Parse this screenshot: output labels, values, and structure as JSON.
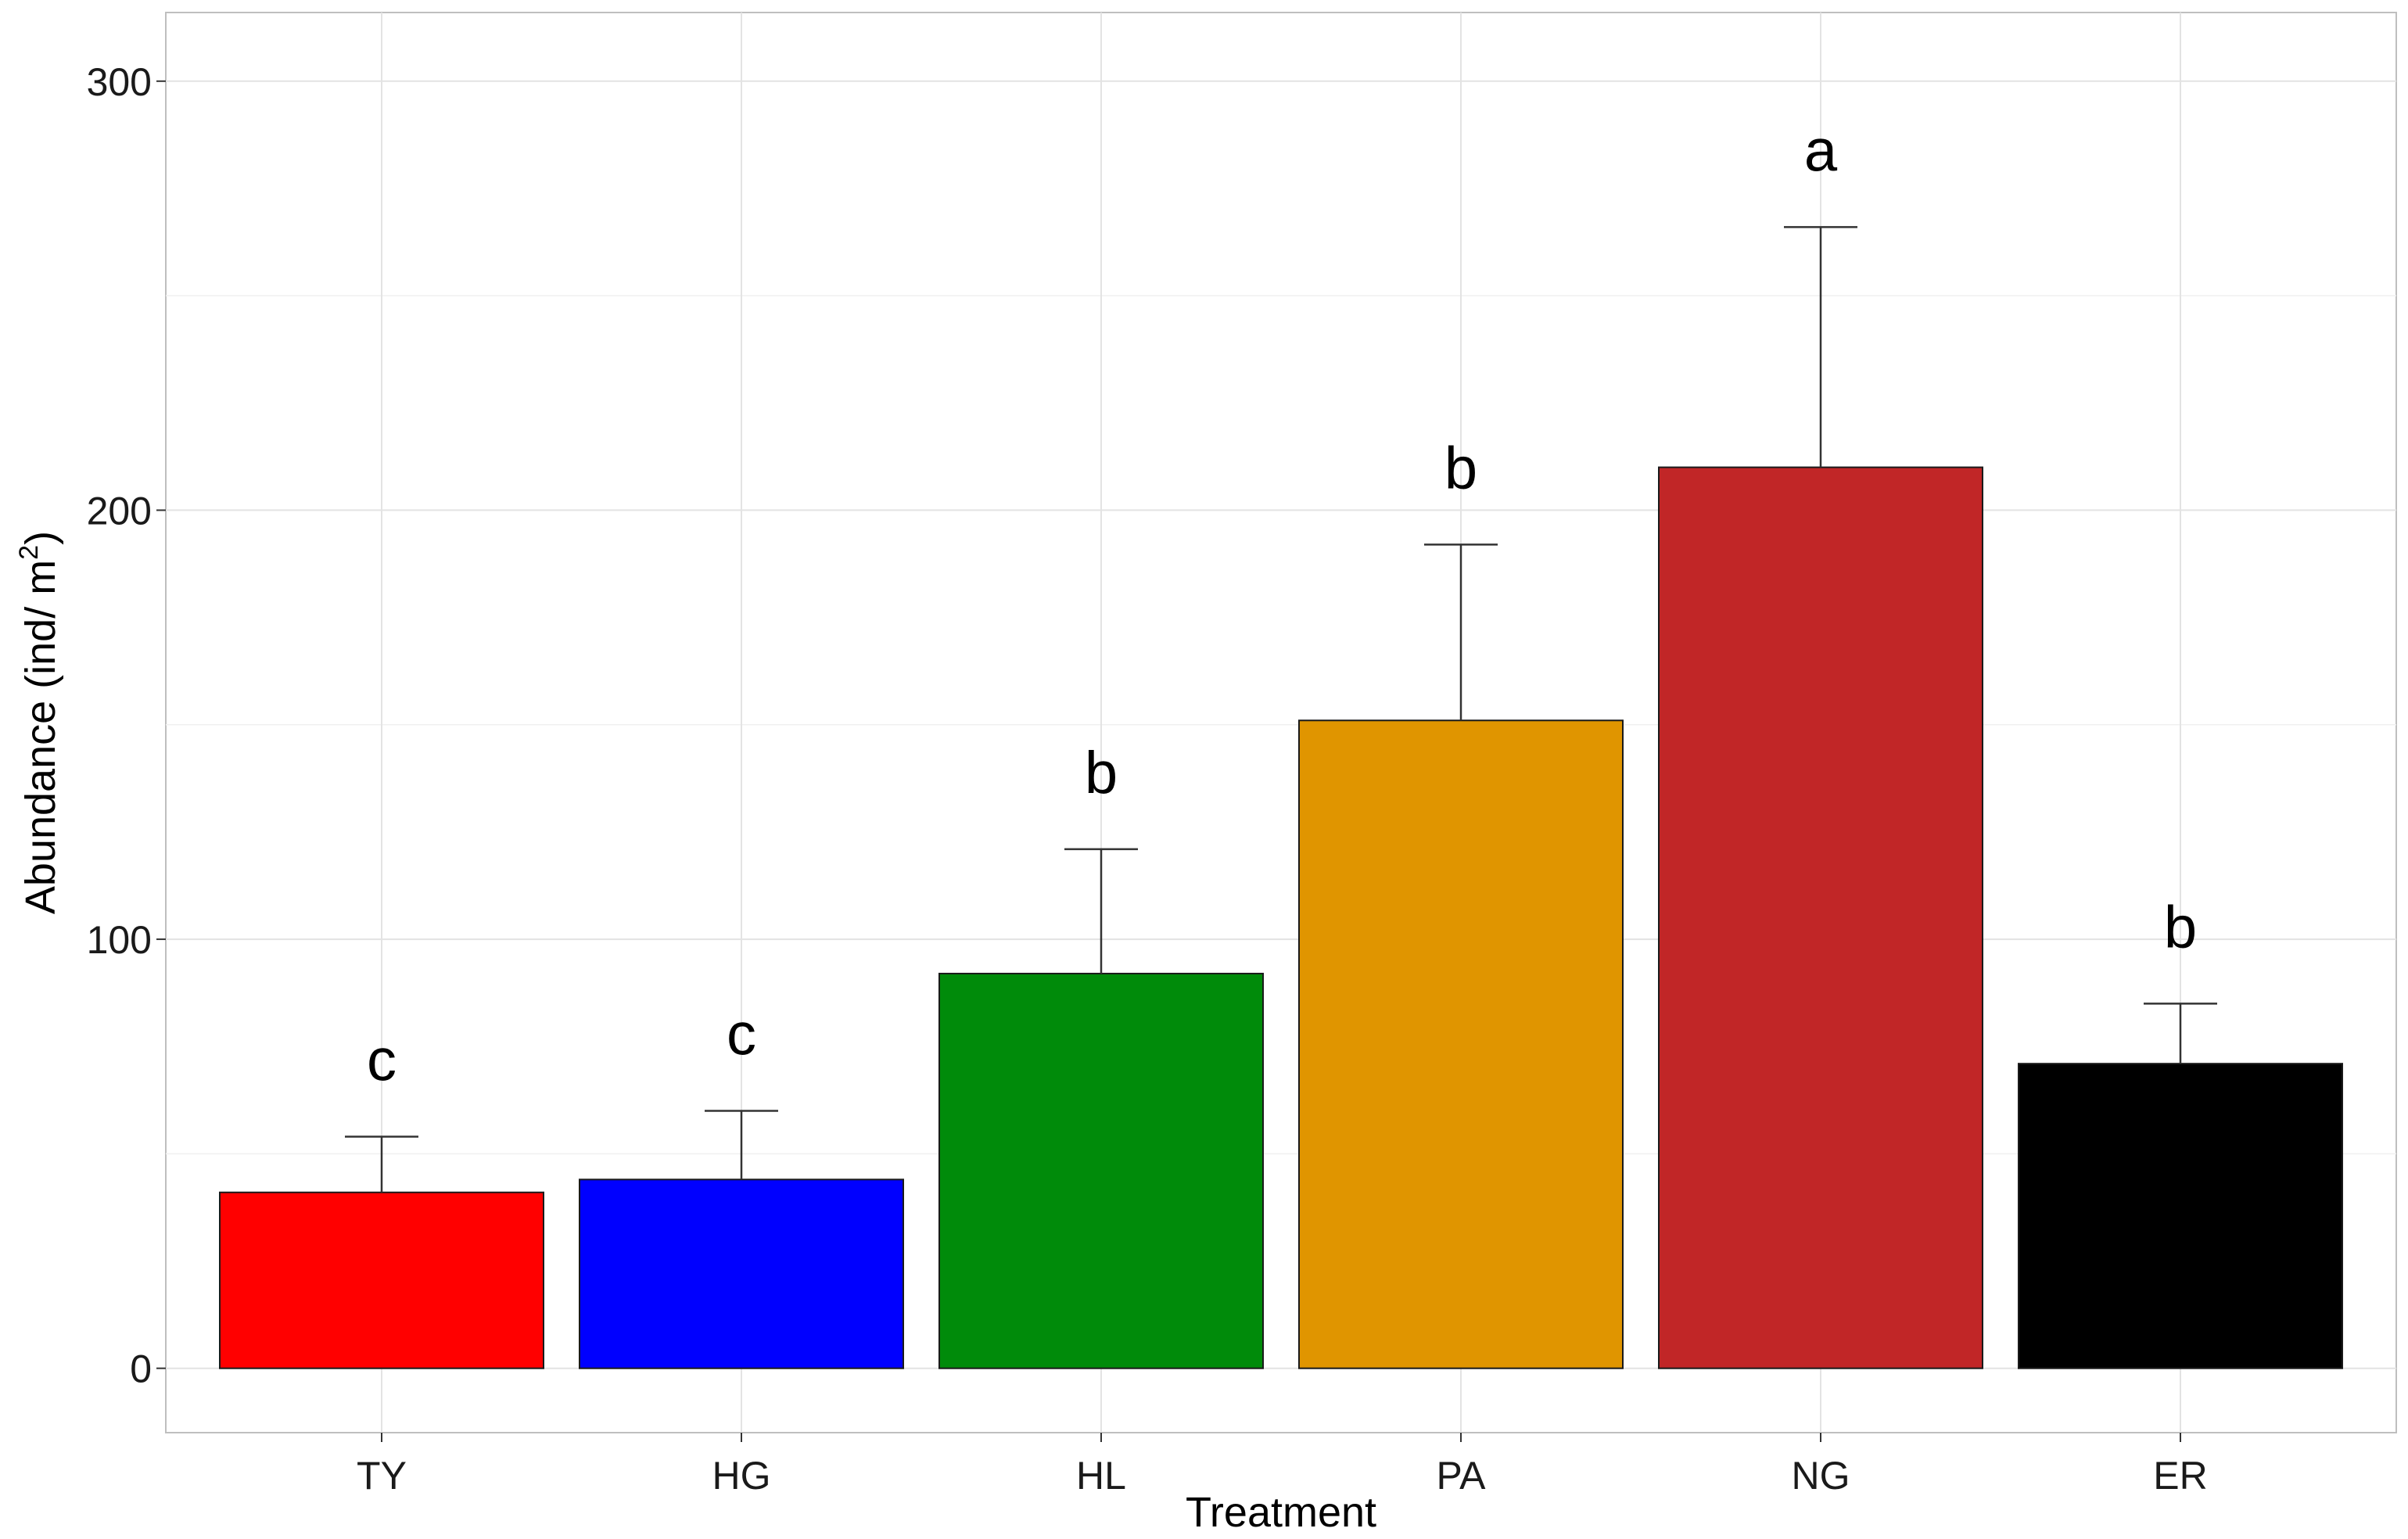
{
  "chart_data": {
    "type": "bar",
    "title": "",
    "xlabel": "Treatment",
    "ylabel": "Abundance (ind/ m",
    "ylabel_superscript": "2",
    "ylabel_close": ")",
    "categories": [
      "TY",
      "HG",
      "HL",
      "PA",
      "NG",
      "ER"
    ],
    "values": [
      41,
      44,
      92,
      151,
      210,
      71
    ],
    "error_upper": [
      54,
      60,
      121,
      192,
      266,
      85
    ],
    "significance": [
      "c",
      "c",
      "b",
      "b",
      "a",
      "b"
    ],
    "colors": [
      "#ff0000",
      "#0000ff",
      "#008b0a",
      "#e09500",
      "#c12627",
      "#000000"
    ],
    "ylim": [
      -15,
      316
    ],
    "y_ticks": [
      0,
      100,
      200,
      300
    ],
    "y_minor_ticks": [
      50,
      150,
      250
    ],
    "grid": true,
    "legend": "none"
  }
}
